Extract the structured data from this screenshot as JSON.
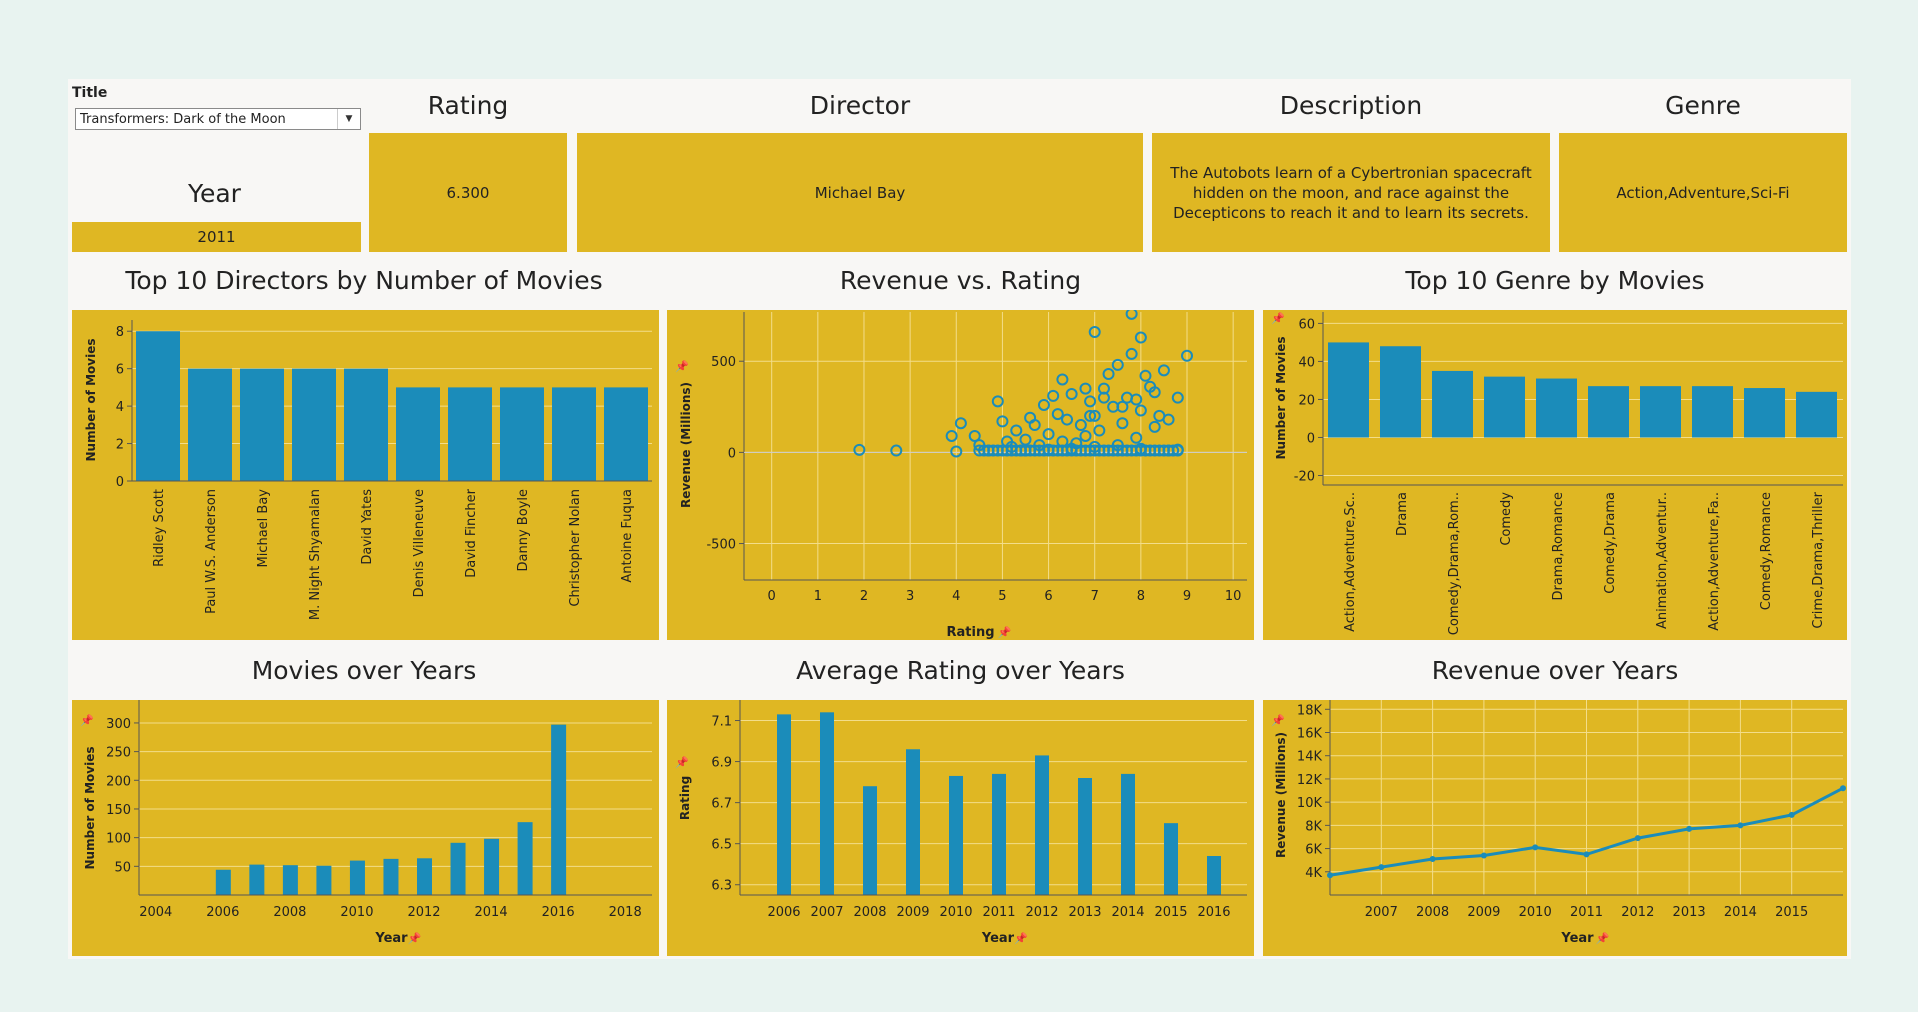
{
  "filter": {
    "label": "Title",
    "selected": "Transformers: Dark of the Moon"
  },
  "cards": {
    "year": {
      "label": "Year",
      "value": "2011"
    },
    "rating": {
      "label": "Rating",
      "value": "6.300"
    },
    "director": {
      "label": "Director",
      "value": "Michael Bay"
    },
    "description": {
      "label": "Description",
      "value": "The Autobots learn of a Cybertronian spacecraft hidden on the moon, and race against the Decepticons to reach it and to learn its secrets."
    },
    "genre": {
      "label": "Genre",
      "value": "Action,Adventure,Sci-Fi"
    }
  },
  "colors": {
    "panel": "#dfb723",
    "mark": "#1b8cba",
    "background": "#f8f7f5"
  },
  "icons": [
    "pin-icon",
    "dropdown-arrow-icon"
  ],
  "chart_data": [
    {
      "type": "bar",
      "title": "Top 10 Directors by Number of Movies",
      "xlabel": "",
      "ylabel": "Number of Movies",
      "categories": [
        "Ridley Scott",
        "Paul W.S. Anderson",
        "Michael Bay",
        "M. Night Shyamalan",
        "David Yates",
        "Denis Villeneuve",
        "David Fincher",
        "Danny Boyle",
        "Christopher Nolan",
        "Antoine Fuqua"
      ],
      "values": [
        8,
        6,
        6,
        6,
        6,
        5,
        5,
        5,
        5,
        5
      ],
      "ylim": [
        0,
        8.6
      ],
      "yticks": [
        "0",
        "2",
        "4",
        "6",
        "8"
      ],
      "grid": true
    },
    {
      "type": "scatter",
      "title": "Revenue vs. Rating",
      "xlabel": "Rating",
      "ylabel": "Revenue (Millions)",
      "xlim": [
        -0.6,
        10.3
      ],
      "ylim": [
        -700,
        770
      ],
      "xticks": [
        "0",
        "1",
        "2",
        "3",
        "4",
        "5",
        "6",
        "7",
        "8",
        "9",
        "10"
      ],
      "yticks": [
        "-500",
        "0",
        "500"
      ],
      "points": [
        [
          1.9,
          14
        ],
        [
          2.7,
          10
        ],
        [
          3.9,
          90
        ],
        [
          4.1,
          160
        ],
        [
          4.0,
          5
        ],
        [
          4.4,
          90
        ],
        [
          4.5,
          40
        ],
        [
          4.7,
          10
        ],
        [
          4.9,
          280
        ],
        [
          5.0,
          170
        ],
        [
          5.1,
          60
        ],
        [
          5.2,
          30
        ],
        [
          5.3,
          120
        ],
        [
          5.4,
          10
        ],
        [
          5.5,
          70
        ],
        [
          5.6,
          190
        ],
        [
          5.7,
          150
        ],
        [
          5.8,
          40
        ],
        [
          5.9,
          260
        ],
        [
          6.0,
          100
        ],
        [
          6.1,
          310
        ],
        [
          6.2,
          210
        ],
        [
          6.3,
          60
        ],
        [
          6.3,
          400
        ],
        [
          6.4,
          180
        ],
        [
          6.5,
          320
        ],
        [
          6.6,
          50
        ],
        [
          6.7,
          150
        ],
        [
          6.8,
          90
        ],
        [
          6.9,
          280
        ],
        [
          7.0,
          660
        ],
        [
          7.0,
          200
        ],
        [
          7.1,
          120
        ],
        [
          7.2,
          350
        ],
        [
          7.3,
          430
        ],
        [
          7.4,
          250
        ],
        [
          7.5,
          480
        ],
        [
          7.6,
          160
        ],
        [
          7.7,
          300
        ],
        [
          7.8,
          760
        ],
        [
          7.8,
          540
        ],
        [
          7.9,
          80
        ],
        [
          8.0,
          630
        ],
        [
          8.0,
          230
        ],
        [
          8.1,
          420
        ],
        [
          8.2,
          360
        ],
        [
          8.3,
          140
        ],
        [
          8.4,
          200
        ],
        [
          8.5,
          450
        ],
        [
          8.6,
          180
        ],
        [
          8.8,
          300
        ],
        [
          9.0,
          530
        ],
        [
          8.8,
          15
        ],
        [
          8.6,
          10
        ],
        [
          7.0,
          30
        ],
        [
          6.5,
          20
        ],
        [
          6.0,
          15
        ],
        [
          5.5,
          10
        ],
        [
          7.5,
          40
        ],
        [
          8.0,
          20
        ],
        [
          6.8,
          350
        ],
        [
          7.2,
          300
        ],
        [
          6.9,
          200
        ],
        [
          7.6,
          250
        ],
        [
          8.3,
          330
        ],
        [
          7.9,
          290
        ]
      ]
    },
    {
      "type": "bar",
      "title": "Top 10 Genre by Movies",
      "xlabel": "",
      "ylabel": "Number of Movies",
      "categories": [
        "Action,Adventure,Sc..",
        "Drama",
        "Comedy,Drama,Rom..",
        "Comedy",
        "Drama,Romance",
        "Comedy,Drama",
        "Animation,Adventur..",
        "Action,Adventure,Fa..",
        "Comedy,Romance",
        "Crime,Drama,Thriller"
      ],
      "values": [
        50,
        48,
        35,
        32,
        31,
        27,
        27,
        27,
        26,
        24
      ],
      "ylim": [
        -25,
        66
      ],
      "yticks": [
        "-20",
        "0",
        "20",
        "40",
        "60"
      ],
      "grid": true
    },
    {
      "type": "bar",
      "title": "Movies over Years",
      "xlabel": "Year",
      "ylabel": "Number of Movies",
      "x": [
        2006,
        2007,
        2008,
        2009,
        2010,
        2011,
        2012,
        2013,
        2014,
        2015,
        2016
      ],
      "values": [
        44,
        53,
        52,
        51,
        60,
        63,
        64,
        91,
        98,
        127,
        297
      ],
      "xlim": [
        2003.5,
        2018.8
      ],
      "ylim": [
        0,
        340
      ],
      "xticks": [
        "2004",
        "2006",
        "2008",
        "2010",
        "2012",
        "2014",
        "2016",
        "2018"
      ],
      "yticks": [
        "50",
        "100",
        "150",
        "200",
        "250",
        "300"
      ]
    },
    {
      "type": "bar",
      "title": "Average Rating over Years",
      "xlabel": "Year",
      "ylabel": "Rating",
      "categories": [
        "2006",
        "2007",
        "2008",
        "2009",
        "2010",
        "2011",
        "2012",
        "2013",
        "2014",
        "2015",
        "2016"
      ],
      "values": [
        7.13,
        7.14,
        6.78,
        6.96,
        6.83,
        6.84,
        6.93,
        6.82,
        6.84,
        6.6,
        6.44
      ],
      "ylim": [
        6.25,
        7.2
      ],
      "yticks": [
        "6.3",
        "6.5",
        "6.7",
        "6.9",
        "7.1"
      ]
    },
    {
      "type": "line",
      "title": "Revenue over Years",
      "xlabel": "Year",
      "ylabel": "Revenue (Millions)",
      "x": [
        2006,
        2007,
        2008,
        2009,
        2010,
        2011,
        2012,
        2013,
        2014,
        2015,
        2016
      ],
      "values": [
        3700,
        4400,
        5100,
        5400,
        6100,
        5500,
        6900,
        7700,
        8000,
        8900,
        11200
      ],
      "xlim": [
        2006,
        2016
      ],
      "ylim": [
        2000,
        18800
      ],
      "xticks": [
        "2007",
        "2008",
        "2009",
        "2010",
        "2011",
        "2012",
        "2013",
        "2014",
        "2015"
      ],
      "yticks": [
        "4K",
        "6K",
        "8K",
        "10K",
        "12K",
        "14K",
        "16K",
        "18K"
      ]
    }
  ]
}
